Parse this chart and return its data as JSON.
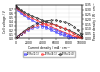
{
  "title": "",
  "xlabel": "Current density / mA · cm⁻²",
  "ylabel_left": "Cell voltage / V",
  "ylabel_right": "Power density / W · cm⁻²",
  "xlim": [
    0,
    10000
  ],
  "ylim_left": [
    0.0,
    0.8
  ],
  "ylim_right": [
    0.0,
    0.35
  ],
  "yticks_left": [
    0.0,
    0.1,
    0.2,
    0.3,
    0.4,
    0.5,
    0.6,
    0.7
  ],
  "yticks_right": [
    0.0,
    0.05,
    0.1,
    0.15,
    0.2,
    0.25,
    0.3,
    0.35
  ],
  "xticks": [
    0,
    2000,
    4000,
    6000,
    8000,
    10000
  ],
  "series": [
    {
      "label": "Pt-Ru(1:1)",
      "color": "#4444ff",
      "marker": "s",
      "type": "E",
      "j": [
        0,
        300,
        700,
        1200,
        1800,
        2500,
        3200,
        3900,
        4600,
        5300,
        6000,
        6700,
        7300,
        7800,
        8200,
        8600,
        9000
      ],
      "v": [
        0.74,
        0.67,
        0.61,
        0.55,
        0.49,
        0.43,
        0.37,
        0.31,
        0.26,
        0.2,
        0.15,
        0.1,
        0.07,
        0.04,
        0.03,
        0.01,
        0.0
      ]
    },
    {
      "label": "Pt-Ru(4:1)",
      "color": "#ff3333",
      "marker": "o",
      "type": "E",
      "j": [
        0,
        300,
        700,
        1200,
        1800,
        2500,
        3200,
        3900,
        4600,
        5300,
        6000,
        6700,
        7400,
        8000,
        8700,
        9200,
        9700,
        10000
      ],
      "v": [
        0.76,
        0.7,
        0.65,
        0.59,
        0.54,
        0.48,
        0.43,
        0.38,
        0.33,
        0.28,
        0.23,
        0.18,
        0.14,
        0.1,
        0.06,
        0.03,
        0.01,
        0.0
      ]
    },
    {
      "label": "Pt-Ru(1:4)",
      "color": "#333333",
      "marker": "D",
      "type": "E",
      "j": [
        0,
        300,
        700,
        1200,
        1800,
        2500,
        3200,
        3900,
        4600,
        5300,
        6000,
        6700,
        7400,
        8100,
        8800,
        9400,
        9800,
        10000
      ],
      "v": [
        0.78,
        0.73,
        0.68,
        0.63,
        0.58,
        0.53,
        0.49,
        0.44,
        0.4,
        0.36,
        0.32,
        0.27,
        0.23,
        0.19,
        0.14,
        0.09,
        0.05,
        0.03
      ]
    },
    {
      "label": "Pt-Ru(1:1)",
      "color": "#4444ff",
      "marker": "s",
      "type": "P",
      "j": [
        0,
        300,
        700,
        1200,
        1800,
        2500,
        3200,
        3900,
        4600,
        5300,
        6000,
        6700,
        7300,
        7800,
        8200,
        8600,
        9000
      ],
      "v": [
        0.0,
        0.02,
        0.043,
        0.066,
        0.088,
        0.108,
        0.118,
        0.121,
        0.12,
        0.106,
        0.09,
        0.067,
        0.051,
        0.031,
        0.025,
        0.009,
        0.0
      ]
    },
    {
      "label": "Pt-Ru(4:1)",
      "color": "#ff3333",
      "marker": "o",
      "type": "P",
      "j": [
        0,
        300,
        700,
        1200,
        1800,
        2500,
        3200,
        3900,
        4600,
        5300,
        6000,
        6700,
        7400,
        8000,
        8700,
        9200,
        9700,
        10000
      ],
      "v": [
        0.0,
        0.021,
        0.046,
        0.071,
        0.097,
        0.12,
        0.138,
        0.148,
        0.152,
        0.148,
        0.138,
        0.121,
        0.104,
        0.08,
        0.052,
        0.028,
        0.01,
        0.0
      ]
    },
    {
      "label": "Pt-Ru(1:4)",
      "color": "#333333",
      "marker": "D",
      "type": "P",
      "j": [
        0,
        300,
        700,
        1200,
        1800,
        2500,
        3200,
        3900,
        4600,
        5300,
        6000,
        6700,
        7400,
        8100,
        8800,
        9400,
        9800,
        10000
      ],
      "v": [
        0.0,
        0.022,
        0.048,
        0.076,
        0.104,
        0.133,
        0.157,
        0.172,
        0.184,
        0.191,
        0.192,
        0.181,
        0.17,
        0.154,
        0.123,
        0.085,
        0.049,
        0.03
      ]
    }
  ],
  "legend_entries": [
    {
      "label": "Pt-Ru(1:1)",
      "color": "#4444ff",
      "marker": "s"
    },
    {
      "label": "Pt-Ru(4:1)",
      "color": "#ff3333",
      "marker": "o"
    },
    {
      "label": "Pt-Ru(1:4)",
      "color": "#333333",
      "marker": "D"
    }
  ],
  "background_color": "#ffffff"
}
